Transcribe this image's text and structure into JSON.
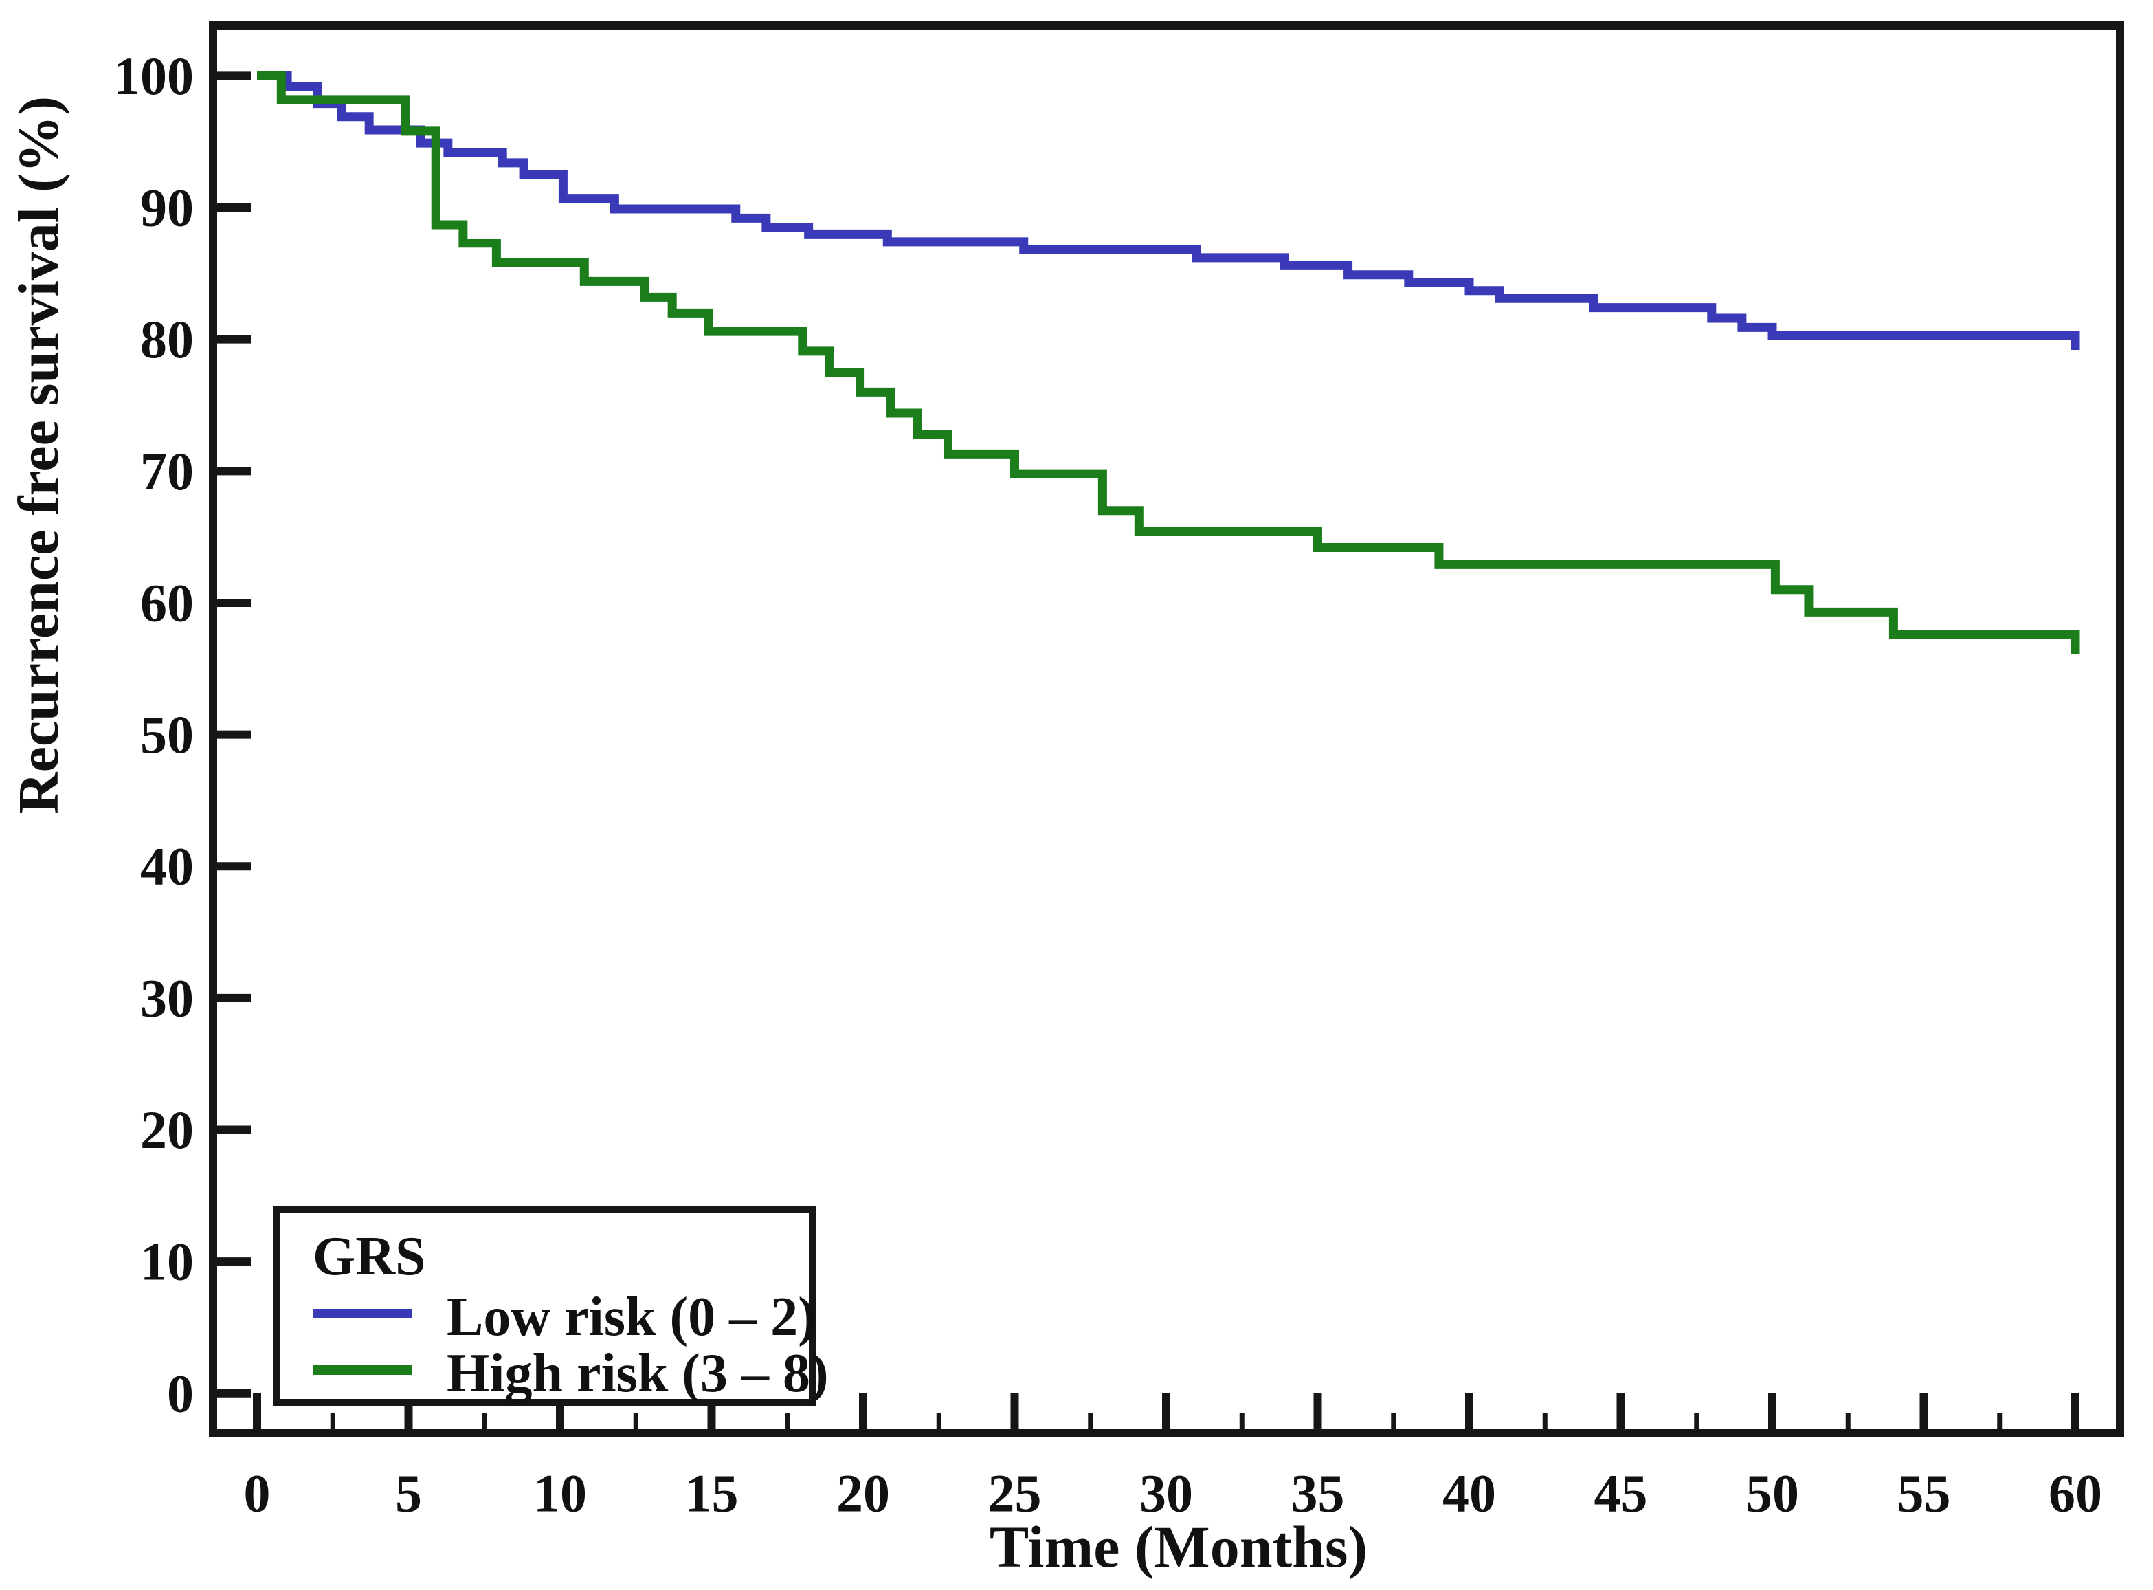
{
  "chart_data": {
    "type": "line",
    "subtype": "kaplan-meier-step",
    "title": "",
    "xlabel": "Time (Months)",
    "ylabel": "Recurrence free survival (%)",
    "xlim": [
      0,
      60
    ],
    "ylim": [
      0,
      100
    ],
    "x_major_ticks": [
      0,
      5,
      10,
      15,
      20,
      25,
      30,
      35,
      40,
      45,
      50,
      55,
      60
    ],
    "x_minor_ticks": [
      2.5,
      7.5,
      12.5,
      17.5,
      22.5,
      27.5,
      32.5,
      37.5,
      42.5,
      47.5,
      52.5,
      57.5
    ],
    "y_ticks": [
      0,
      10,
      20,
      30,
      40,
      50,
      60,
      70,
      80,
      90,
      100
    ],
    "grid": "off",
    "frame": "box",
    "colors": {
      "low_risk": "#3A3AB8",
      "high_risk": "#1B7E1B",
      "axis": "#161616",
      "text": "#111111",
      "background": "#ffffff"
    },
    "legend": {
      "title": "GRS",
      "position": "bottom-left",
      "entries": [
        {
          "label": "Low risk (0 – 2)",
          "color": "#3A3AB8"
        },
        {
          "label": "High risk (3 – 8)",
          "color": "#1B7E1B"
        }
      ]
    },
    "series": [
      {
        "name": "Low risk (0 – 2)",
        "color": "#3A3AB8",
        "steps": [
          [
            0,
            100
          ],
          [
            1,
            99.2
          ],
          [
            2,
            97.9
          ],
          [
            2.8,
            96.9
          ],
          [
            3.7,
            95.9
          ],
          [
            5.4,
            94.9
          ],
          [
            6.3,
            94.2
          ],
          [
            8.1,
            93.4
          ],
          [
            8.8,
            92.5
          ],
          [
            10.1,
            90.7
          ],
          [
            11.8,
            89.9
          ],
          [
            15.8,
            89.2
          ],
          [
            16.8,
            88.5
          ],
          [
            18.2,
            88.0
          ],
          [
            20.8,
            87.4
          ],
          [
            25.3,
            86.8
          ],
          [
            31,
            86.2
          ],
          [
            33.9,
            85.6
          ],
          [
            36,
            84.9
          ],
          [
            38,
            84.3
          ],
          [
            40,
            83.7
          ],
          [
            41,
            83.1
          ],
          [
            44.1,
            82.4
          ],
          [
            48,
            81.6
          ],
          [
            49,
            80.9
          ],
          [
            50,
            80.3
          ],
          [
            60,
            80.3
          ],
          [
            60,
            79.2
          ]
        ]
      },
      {
        "name": "High risk (3 – 8)",
        "color": "#1B7E1B",
        "steps": [
          [
            0,
            100
          ],
          [
            0.8,
            98.2
          ],
          [
            4.9,
            95.8
          ],
          [
            5.9,
            88.7
          ],
          [
            6.8,
            87.3
          ],
          [
            7.9,
            85.8
          ],
          [
            10.8,
            84.4
          ],
          [
            12.8,
            83.2
          ],
          [
            13.7,
            82.0
          ],
          [
            14.9,
            80.6
          ],
          [
            18,
            79.1
          ],
          [
            18.9,
            77.5
          ],
          [
            19.9,
            76.0
          ],
          [
            20.9,
            74.4
          ],
          [
            21.8,
            72.8
          ],
          [
            22.8,
            71.3
          ],
          [
            25,
            69.8
          ],
          [
            27.9,
            67.0
          ],
          [
            29.1,
            65.4
          ],
          [
            35,
            64.2
          ],
          [
            39,
            62.9
          ],
          [
            50.1,
            61.0
          ],
          [
            51.2,
            59.3
          ],
          [
            54,
            57.6
          ],
          [
            60,
            57.6
          ],
          [
            60,
            56.1
          ]
        ]
      }
    ]
  },
  "axes": {
    "x_title": "Time (Months)",
    "y_title": "Recurrence free survival (%)"
  },
  "legend": {
    "title": "GRS",
    "low_label": "Low risk (0 – 2)",
    "high_label": "High risk (3 – 8)"
  }
}
